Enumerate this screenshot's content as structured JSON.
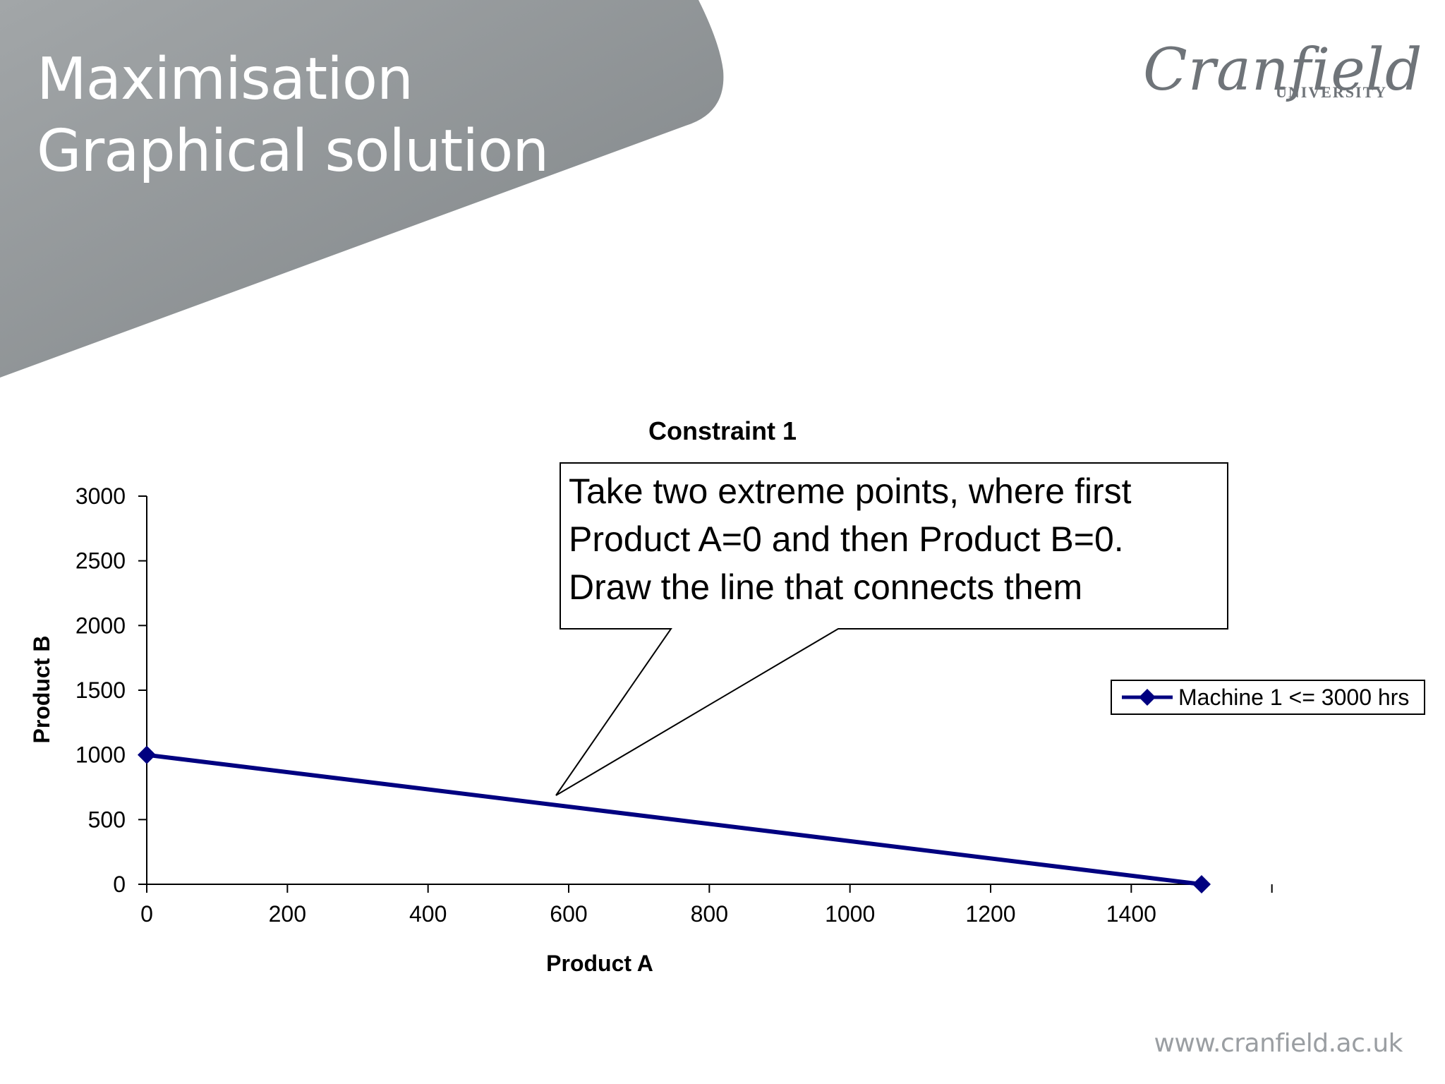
{
  "slide": {
    "title_line1": "Maximisation",
    "title_line2": "Graphical solution",
    "logo_word": "Cranfield",
    "logo_sub": "UNIVERSITY",
    "footer_url": "www.cranfield.ac.uk"
  },
  "colors": {
    "header_gray": "#8a8f93",
    "series": "#000080",
    "footer": "#9a9ea2"
  },
  "callout": {
    "line1": "Take two extreme points, where first",
    "line2": "Product A=0 and then Product B=0.",
    "line3": "Draw the line that connects them"
  },
  "chart_data": {
    "type": "line",
    "title": "Constraint 1",
    "xlabel": "Product A",
    "ylabel": "Product B",
    "xlim": [
      0,
      1500
    ],
    "ylim": [
      0,
      3000
    ],
    "xticks": [
      0,
      200,
      400,
      600,
      800,
      1000,
      1200,
      1400
    ],
    "yticks": [
      0,
      500,
      1000,
      1500,
      2000,
      2500,
      3000
    ],
    "grid": false,
    "legend_position": "right",
    "series": [
      {
        "name": "Machine 1 <= 3000 hrs",
        "x": [
          0,
          1500
        ],
        "y": [
          1000,
          0
        ],
        "marker": "diamond"
      }
    ]
  }
}
